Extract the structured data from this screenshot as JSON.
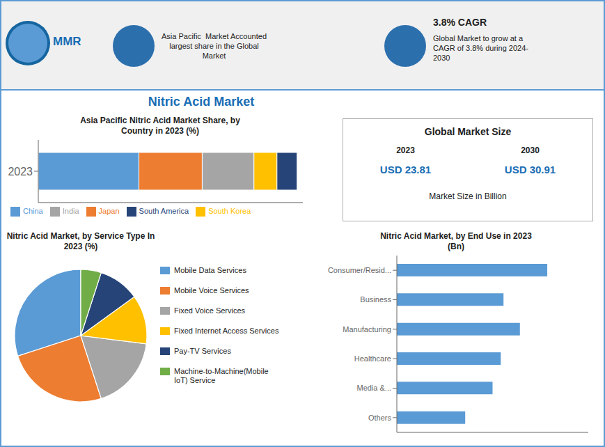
{
  "title": "Nitric Acid Market",
  "annotations": [
    "MMR",
    "Asia Pacific  Market Accounted\nlargest share in the Global\nMarket",
    "3.8% CAGR",
    "Global Market to grow at a\nCAGR of 3.8% during 2024-\n2030",
    "Global Market Size",
    "2023",
    "2030",
    "USD 23.81",
    "USD 30.91",
    "Market Size in Billion"
  ],
  "chart_data": [
    {
      "type": "bar",
      "orientation": "horizontal",
      "stacked": true,
      "title": "Asia Pacific Nitric Acid Market Share, by\nCountry in 2023 (%)",
      "categories": [
        "2023"
      ],
      "series": [
        {
          "name": "China",
          "color": "#5B9BD5",
          "values": [
            35
          ]
        },
        {
          "name": "Japan",
          "color": "#ED7D31",
          "values": [
            22
          ]
        },
        {
          "name": "India",
          "color": "#A5A5A5",
          "values": [
            18
          ]
        },
        {
          "name": "South Korea",
          "color": "#FFC000",
          "values": [
            8
          ]
        },
        {
          "name": "South America",
          "color": "#264478",
          "values": [
            7
          ]
        }
      ],
      "xlim": [
        0,
        92
      ],
      "tick_labels": "y",
      "legend": "lower left"
    },
    {
      "type": "pie",
      "title": "Nitric Acid Market, by Service Type In\n2023 (%)",
      "categories": [
        "Mobile Data Services",
        "Mobile Voice Services",
        "Fixed Voice Services",
        "Fixed Internet Access Services",
        "Pay-TV Services",
        "Machine-to-Machine(Mobile\nIoT) Service"
      ],
      "values": [
        30,
        25,
        18,
        12,
        10,
        5
      ],
      "colors": [
        "#5B9BD5",
        "#ED7D31",
        "#A5A5A5",
        "#FFC000",
        "#264478",
        "#70AD47"
      ],
      "legend": "right"
    },
    {
      "type": "bar",
      "orientation": "horizontal",
      "title": "Nitric Acid Market, by End Use in 2023\n(Bn)",
      "categories": [
        "Others",
        "Media &...",
        "Healthcare",
        "Manufacturing",
        "Business",
        "Consumer/Resid..."
      ],
      "values": [
        2.5,
        3.5,
        3.8,
        4.5,
        3.9,
        5.5
      ],
      "color": "#5B9BD5",
      "xlim": [
        0,
        7
      ],
      "tick_labels": "y"
    }
  ]
}
